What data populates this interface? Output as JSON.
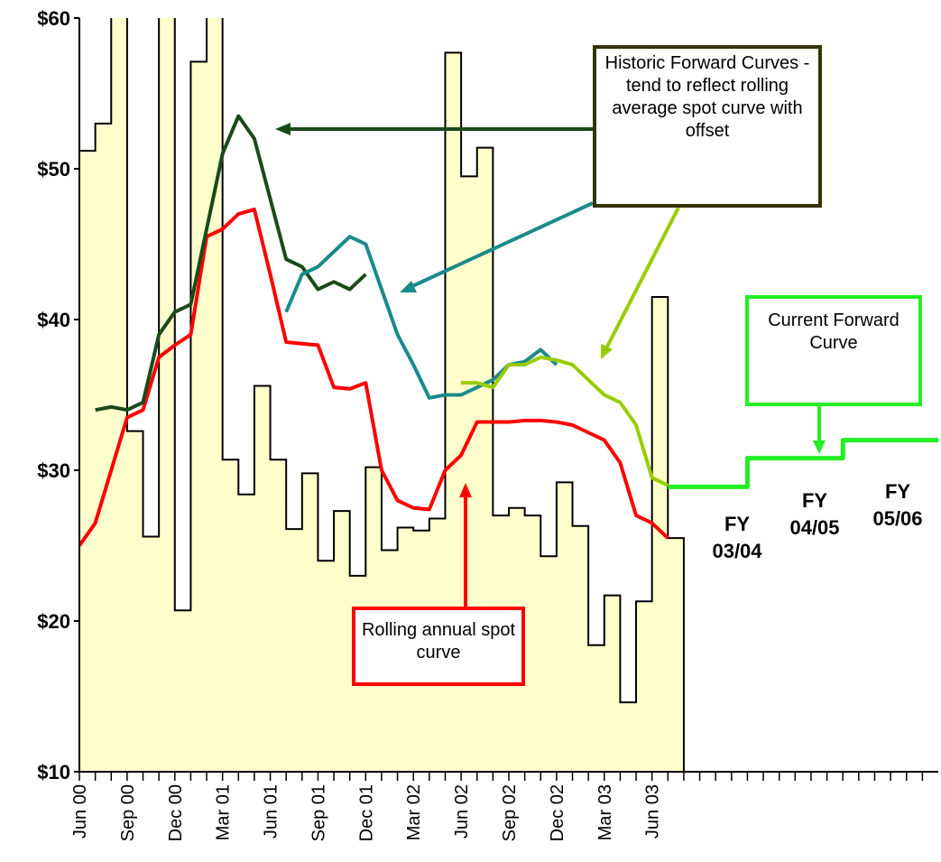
{
  "chart_data": {
    "type": "line",
    "categories": [
      "Jun 00",
      null,
      null,
      "Sep 00",
      null,
      null,
      "Dec 00",
      null,
      null,
      "Mar 01",
      null,
      null,
      "Jun 01",
      null,
      null,
      "Sep 01",
      null,
      null,
      "Dec 01",
      null,
      null,
      "Mar 02",
      null,
      null,
      "Jun 02",
      null,
      null,
      "Sep 02",
      null,
      null,
      "Dec 02",
      null,
      null,
      "Mar 03",
      null,
      null,
      "Jun 03",
      null,
      null,
      null,
      null,
      null,
      null,
      null,
      null,
      null,
      null,
      null,
      null,
      null,
      null,
      null,
      null,
      null
    ],
    "ylim": [
      10,
      60
    ],
    "yticks": [
      {
        "value": 10,
        "label": "$10"
      },
      {
        "value": 20,
        "label": "$20"
      },
      {
        "value": 30,
        "label": "$30"
      },
      {
        "value": 40,
        "label": "$40"
      },
      {
        "value": 50,
        "label": "$50"
      },
      {
        "value": 60,
        "label": "$60"
      }
    ],
    "series": [
      {
        "style": "bar-step",
        "color": "#ffffcc",
        "values": [
          51.2,
          53,
          65,
          32.6,
          25.6,
          65,
          20.7,
          57.1,
          65,
          30.7,
          28.4,
          35.6,
          30.7,
          26.1,
          29.8,
          24,
          27.3,
          23,
          30.2,
          24.7,
          26.2,
          26,
          26.8,
          57.7,
          49.5,
          51.4,
          27,
          27.5,
          27,
          24.3,
          29.2,
          26.3,
          18.4,
          21.7,
          14.6,
          21.3,
          41.5,
          25.5,
          null,
          null,
          null,
          null,
          null,
          null,
          null,
          null,
          null,
          null,
          null,
          null,
          null,
          null,
          null,
          null
        ]
      },
      {
        "style": "line",
        "color": "#ff0000",
        "values": [
          25,
          26.5,
          30,
          33.5,
          34,
          37.5,
          38.3,
          39,
          45.5,
          46,
          47,
          47.3,
          43,
          38.5,
          38.4,
          38.3,
          35.5,
          35.4,
          35.8,
          30,
          28,
          27.5,
          27.4,
          30,
          31,
          33.2,
          33.2,
          33.2,
          33.3,
          33.3,
          33.2,
          33,
          32.5,
          32,
          30.5,
          27,
          26.5,
          25.5,
          null,
          null,
          null,
          null,
          null,
          null,
          null,
          null,
          null,
          null,
          null,
          null,
          null,
          null,
          null,
          null
        ]
      },
      {
        "style": "line",
        "color": "#1a4a1a",
        "values": [
          null,
          34,
          34.2,
          34,
          34.5,
          39,
          40.5,
          41,
          46,
          51,
          53.5,
          52,
          48,
          44,
          43.5,
          42,
          42.5,
          42,
          43,
          null,
          null,
          null,
          null,
          null,
          null,
          null,
          null,
          null,
          null,
          null,
          null,
          null,
          null,
          null,
          null,
          null,
          null,
          null,
          null,
          null,
          null,
          null,
          null,
          null,
          null,
          null,
          null,
          null,
          null,
          null,
          null,
          null,
          null,
          null
        ]
      },
      {
        "style": "line",
        "color": "#1a8a8a",
        "values": [
          null,
          null,
          null,
          null,
          null,
          null,
          null,
          null,
          null,
          null,
          null,
          null,
          null,
          40.5,
          43,
          43.5,
          44.5,
          45.5,
          45,
          42,
          39,
          37,
          34.8,
          35,
          35,
          35.5,
          36,
          37,
          37.2,
          38,
          37,
          null,
          null,
          null,
          null,
          null,
          null,
          null,
          null,
          null,
          null,
          null,
          null,
          null,
          null,
          null,
          null,
          null,
          null,
          null,
          null,
          null,
          null,
          null
        ]
      },
      {
        "style": "line",
        "color": "#99cc00",
        "values": [
          null,
          null,
          null,
          null,
          null,
          null,
          null,
          null,
          null,
          null,
          null,
          null,
          null,
          null,
          null,
          null,
          null,
          null,
          null,
          null,
          null,
          null,
          null,
          null,
          35.8,
          35.8,
          35.5,
          37,
          37,
          37.5,
          37.3,
          37,
          36,
          35,
          34.5,
          33,
          29.5,
          29,
          null,
          null,
          null,
          null,
          null,
          null,
          null,
          null,
          null,
          null,
          null,
          null,
          null,
          null,
          null,
          null
        ]
      },
      {
        "style": "step",
        "color": "#22ee22",
        "values": [
          null,
          null,
          null,
          null,
          null,
          null,
          null,
          null,
          null,
          null,
          null,
          null,
          null,
          null,
          null,
          null,
          null,
          null,
          null,
          null,
          null,
          null,
          null,
          null,
          null,
          null,
          null,
          null,
          null,
          null,
          null,
          null,
          null,
          null,
          null,
          null,
          null,
          28.9,
          28.9,
          28.9,
          28.9,
          28.9,
          30.8,
          30.8,
          30.8,
          30.8,
          30.8,
          30.8,
          32,
          32,
          32,
          32,
          32,
          32
        ]
      }
    ],
    "annotations": [
      {
        "text": "Historic  Forward Curves - tend to reflect rolling average spot curve with offset",
        "color": "#333300"
      },
      {
        "text": "Current Forward Curve",
        "color": "#22ee22"
      },
      {
        "text": "Rolling annual spot curve",
        "color": "#ff0000"
      },
      {
        "text": "FY 03/04"
      },
      {
        "text": "FY 04/05"
      },
      {
        "text": "FY 05/06"
      }
    ]
  }
}
